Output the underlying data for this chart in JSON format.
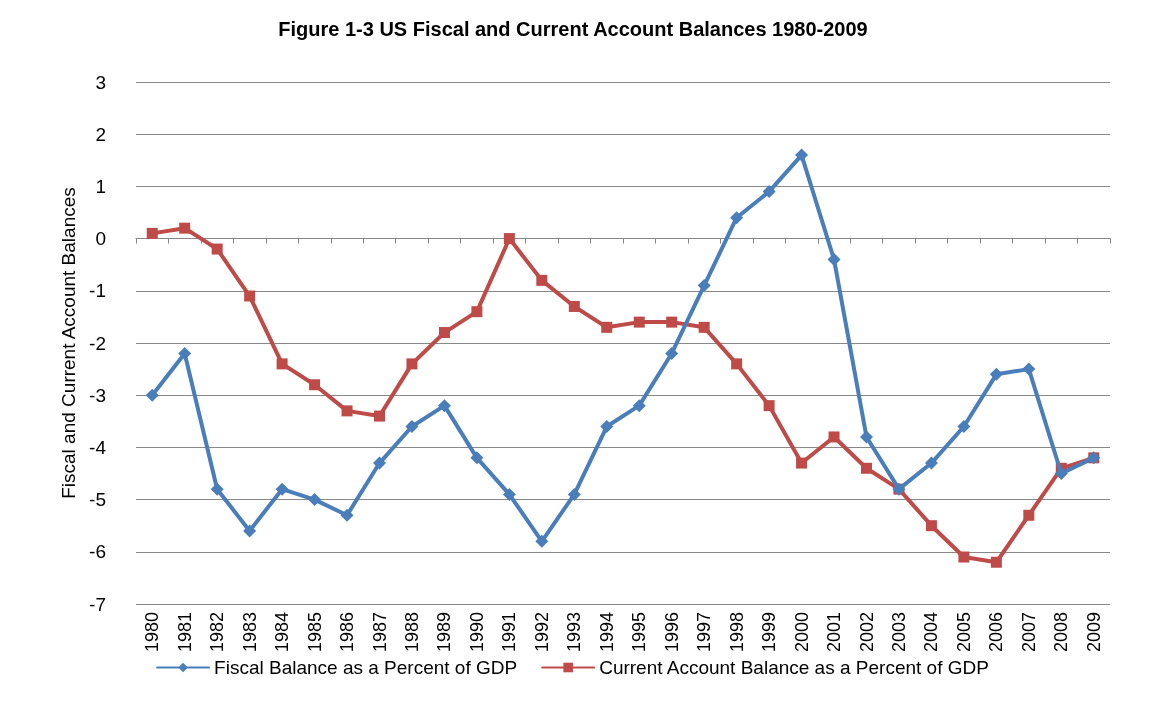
{
  "chart_data": {
    "type": "line",
    "title": "Figure 1-3 US Fiscal and Current Account Balances 1980-2009",
    "ylabel": "Fiscal and Current Account Balances",
    "categories": [
      "1980",
      "1981",
      "1982",
      "1983",
      "1984",
      "1985",
      "1986",
      "1987",
      "1988",
      "1989",
      "1990",
      "1991",
      "1992",
      "1993",
      "1994",
      "1995",
      "1996",
      "1997",
      "1998",
      "1999",
      "2000",
      "2001",
      "2002",
      "2003",
      "2004",
      "2005",
      "2006",
      "2007",
      "2008",
      "2009"
    ],
    "series": [
      {
        "name": "Fiscal Balance as a Percent of GDP",
        "color": "#4a7ebb",
        "marker": "diamond",
        "values": [
          -3.0,
          -2.2,
          -4.8,
          -5.6,
          -4.8,
          -5.0,
          -5.3,
          -4.3,
          -3.6,
          -3.2,
          -4.2,
          -4.9,
          -5.8,
          -4.9,
          -3.6,
          -3.2,
          -2.2,
          -0.9,
          0.4,
          0.9,
          1.6,
          -0.4,
          -3.8,
          -4.8,
          -4.3,
          -3.6,
          -2.6,
          -2.5,
          -4.5,
          -4.2
        ]
      },
      {
        "name": "Current Account Balance as a Percent of GDP",
        "color": "#be4b48",
        "marker": "square",
        "values": [
          0.1,
          0.2,
          -0.2,
          -1.1,
          -2.4,
          -2.8,
          -3.3,
          -3.4,
          -2.4,
          -1.8,
          -1.4,
          0.0,
          -0.8,
          -1.3,
          -1.7,
          -1.6,
          -1.6,
          -1.7,
          -2.4,
          -3.2,
          -4.3,
          -3.8,
          -4.4,
          -4.8,
          -5.5,
          -6.1,
          -6.2,
          -5.3,
          -4.4,
          -4.2
        ]
      }
    ],
    "ylim": [
      -7,
      3
    ],
    "yticks": [
      -7,
      -6,
      -5,
      -4,
      -3,
      -2,
      -1,
      0,
      1,
      2,
      3
    ],
    "grid": "y",
    "legend": "bottom",
    "line_style": "solid"
  }
}
